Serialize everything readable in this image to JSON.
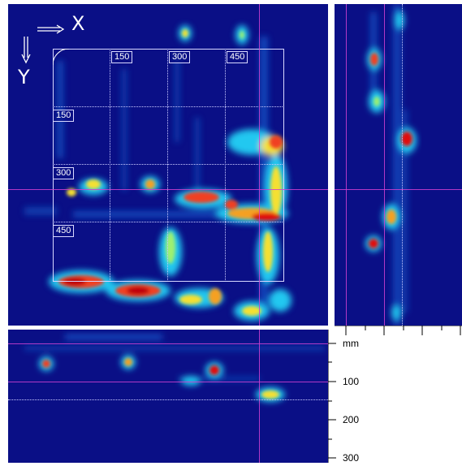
{
  "axis": {
    "x_letter": "X",
    "y_letter": "Y"
  },
  "grid": {
    "top_labels": [
      "150",
      "300",
      "450"
    ],
    "left_labels": [
      "150",
      "300",
      "450"
    ]
  },
  "ruler": {
    "unit": "mm",
    "labels": [
      "100",
      "200",
      "300"
    ]
  },
  "colors": {
    "background": "#0a0f86",
    "crosshair": "#d040d0",
    "grid": "#d8d8ff"
  }
}
